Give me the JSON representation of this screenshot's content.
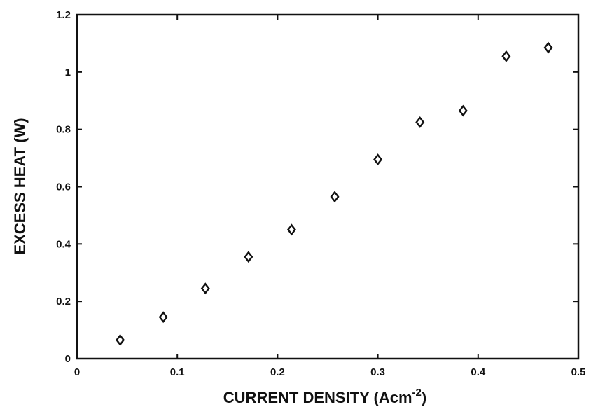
{
  "chart_data": {
    "type": "scatter",
    "title": "",
    "xlabel": "CURRENT DENSITY (Acm",
    "xlabel_superscript": "-2",
    "xlabel_suffix": ")",
    "ylabel": "EXCESS HEAT (W)",
    "xlim": [
      0,
      0.5
    ],
    "ylim": [
      0,
      1.2
    ],
    "x_ticks": [
      0,
      0.1,
      0.2,
      0.3,
      0.4,
      0.5
    ],
    "x_tick_labels": [
      "0",
      "0.1",
      "0.2",
      "0.3",
      "0.4",
      "0.5"
    ],
    "y_ticks": [
      0,
      0.2,
      0.4,
      0.6,
      0.8,
      1.0,
      1.2
    ],
    "y_tick_labels": [
      "0",
      "0.2",
      "0.4",
      "0.6",
      "0.8",
      "1",
      "1.2"
    ],
    "grid": false,
    "marker": "diamond-open",
    "color": "#111111",
    "series": [
      {
        "x": [
          0.043,
          0.086,
          0.128,
          0.171,
          0.214,
          0.257,
          0.3,
          0.342,
          0.385,
          0.428,
          0.47
        ],
        "y": [
          0.065,
          0.145,
          0.245,
          0.355,
          0.45,
          0.565,
          0.695,
          0.825,
          0.865,
          1.055,
          1.085
        ]
      }
    ]
  }
}
